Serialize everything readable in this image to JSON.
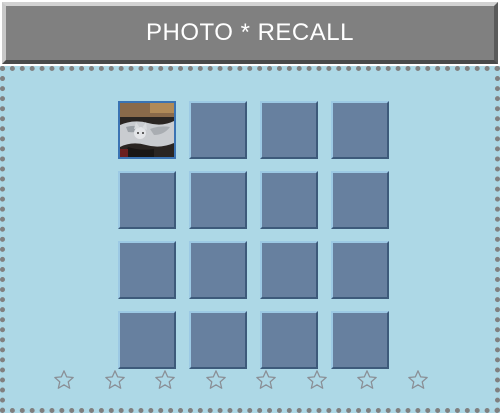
{
  "header": {
    "title": "PHOTO * RECALL"
  },
  "game": {
    "rows": 4,
    "columns": 4,
    "cards": [
      {
        "state": "revealed",
        "photo": "cat"
      },
      {
        "state": "hidden"
      },
      {
        "state": "hidden"
      },
      {
        "state": "hidden"
      },
      {
        "state": "hidden"
      },
      {
        "state": "hidden"
      },
      {
        "state": "hidden"
      },
      {
        "state": "hidden"
      },
      {
        "state": "hidden"
      },
      {
        "state": "hidden"
      },
      {
        "state": "hidden"
      },
      {
        "state": "hidden"
      },
      {
        "state": "hidden"
      },
      {
        "state": "hidden"
      },
      {
        "state": "hidden"
      },
      {
        "state": "hidden"
      }
    ]
  },
  "rating": {
    "total": 8,
    "filled": 0,
    "icon": "star-outline-icon"
  },
  "colors": {
    "title_bar": "#808080",
    "board_background": "#add8e6",
    "card_back": "#67809f",
    "dotted_border": "#808080",
    "revealed_border": "#3a73b3"
  }
}
